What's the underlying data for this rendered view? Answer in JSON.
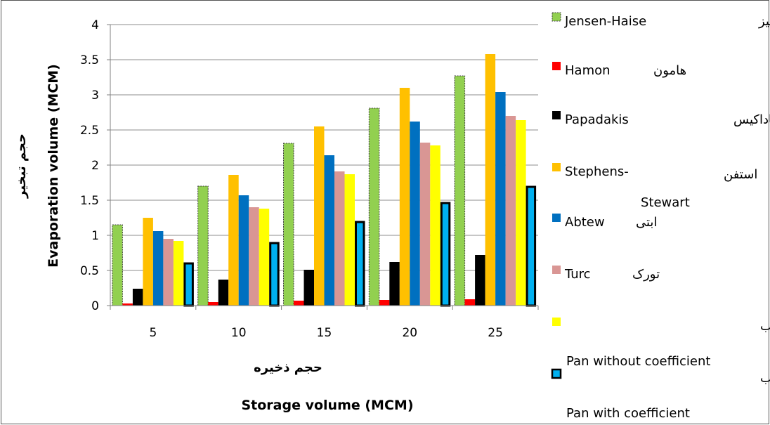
{
  "chart_data": {
    "type": "bar",
    "categories": [
      "5",
      "10",
      "15",
      "20",
      "25"
    ],
    "y_ticks": [
      "0",
      "0.5",
      "1",
      "1.5",
      "2",
      "2.5",
      "3",
      "3.5",
      "4"
    ],
    "ylim": [
      0,
      4
    ],
    "grid": true,
    "legend_position": "right",
    "xlabel_fa": "حجم ذخیره",
    "xlabel": "Storage volume (MCM)",
    "ylabel_fa": "حجم تبخیر",
    "ylabel": "Evaporation volume (MCM)",
    "series": [
      {
        "name": "Jensen-Haise",
        "name_fa": "جنسن هیز",
        "values": [
          1.15,
          1.7,
          2.31,
          2.81,
          3.27
        ],
        "color": "#92D050"
      },
      {
        "name": "Hamon",
        "name_fa": "هامون",
        "values": [
          0.03,
          0.05,
          0.07,
          0.08,
          0.09
        ],
        "color": "#FF0000"
      },
      {
        "name": "Papadakis",
        "name_fa": "پاپاداکیس",
        "values": [
          0.24,
          0.37,
          0.51,
          0.62,
          0.72
        ],
        "color": "#000000"
      },
      {
        "name": "Stephens-",
        "name2": "Stewart",
        "name_fa": "استفن",
        "values": [
          1.25,
          1.86,
          2.55,
          3.1,
          3.58
        ],
        "color": "#FFC000"
      },
      {
        "name": "Abtew",
        "name_fa": "ابتی",
        "values": [
          1.06,
          1.57,
          2.14,
          2.62,
          3.04
        ],
        "color": "#0070C0"
      },
      {
        "name": "Turc",
        "name_fa": "تورک",
        "values": [
          0.95,
          1.4,
          1.91,
          2.32,
          2.7
        ],
        "color": "#D99694"
      },
      {
        "name": "Pan without coefficient",
        "name_fa": "تشت تبخیر بدون اعمال ضریب",
        "values": [
          0.92,
          1.38,
          1.87,
          2.28,
          2.64
        ],
        "color": "#FFFF00"
      },
      {
        "name": "Pan with coefficient",
        "name_fa": "تشت تبخیر با اعمال ضریب",
        "values": [
          0.6,
          0.89,
          1.19,
          1.46,
          1.69
        ],
        "color": "#00B0F0"
      }
    ]
  }
}
